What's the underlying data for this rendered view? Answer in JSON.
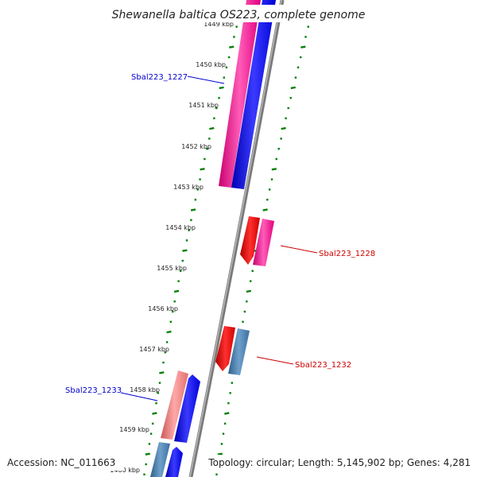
{
  "title": "Shewanella baltica OS223, complete genome",
  "footer": {
    "accession": "Accession: NC_011663",
    "topology": "Topology: circular; Length: 5,145,902 bp; Genes: 4,281"
  },
  "ticks": [
    "1449 kbp",
    "1450 kbp",
    "1451 kbp",
    "1452 kbp",
    "1453 kbp",
    "1454 kbp",
    "1455 kbp",
    "1456 kbp",
    "1457 kbp",
    "1458 kbp",
    "1459 kbp",
    "1460 kbp"
  ],
  "gene_labels": [
    {
      "text": "Sbal223_1227",
      "color": "#0000cc"
    },
    {
      "text": "Sbal223_1228",
      "color": "#cc0000"
    },
    {
      "text": "Sbal223_1232",
      "color": "#cc0000"
    },
    {
      "text": "Sbal223_1233",
      "color": "#0000cc"
    }
  ],
  "colors": {
    "magenta": "#ff1493",
    "blue": "#0000ff",
    "red": "#ee0000",
    "steel": "#4682b4",
    "salmon": "#f08080",
    "backbone": "#808080",
    "tickmark": "#008000"
  }
}
